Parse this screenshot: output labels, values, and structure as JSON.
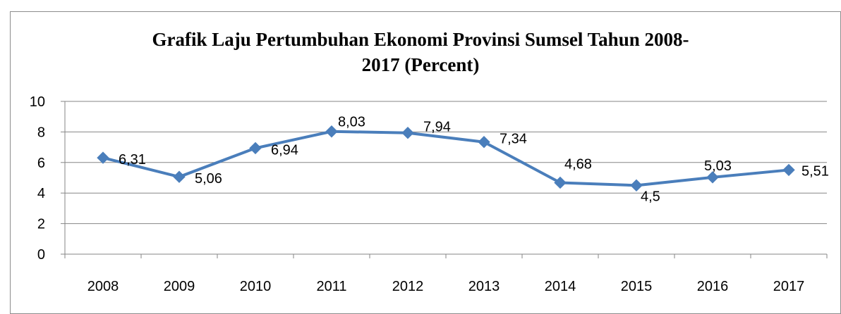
{
  "chart_data": {
    "type": "line",
    "title": "Grafik Laju Pertumbuhan Ekonomi Provinsi Sumsel  Tahun 2008-2017 (Percent)",
    "title_lines": [
      "Grafik Laju Pertumbuhan Ekonomi Provinsi Sumsel  Tahun 2008-",
      "2017 (Percent)"
    ],
    "xlabel": "",
    "ylabel": "",
    "categories": [
      "2008",
      "2009",
      "2010",
      "2011",
      "2012",
      "2013",
      "2014",
      "2015",
      "2016",
      "2017"
    ],
    "series": [
      {
        "values": [
          6.31,
          5.06,
          6.94,
          8.03,
          7.94,
          7.34,
          4.68,
          4.5,
          5.03,
          5.51
        ]
      }
    ],
    "data_labels": [
      "6,31",
      "5,06",
      "6,94",
      "8,03",
      "7,94",
      "7,34",
      "4,68",
      "4,5",
      "5,03",
      "5,51"
    ],
    "ylim": [
      0,
      10
    ],
    "yticks": [
      "0",
      "2",
      "4",
      "6",
      "8",
      "10"
    ],
    "grid": "horizontal",
    "legend": "none",
    "colors": {
      "series": "#4a7ebb",
      "grid": "#868686",
      "axis": "#868686"
    }
  }
}
